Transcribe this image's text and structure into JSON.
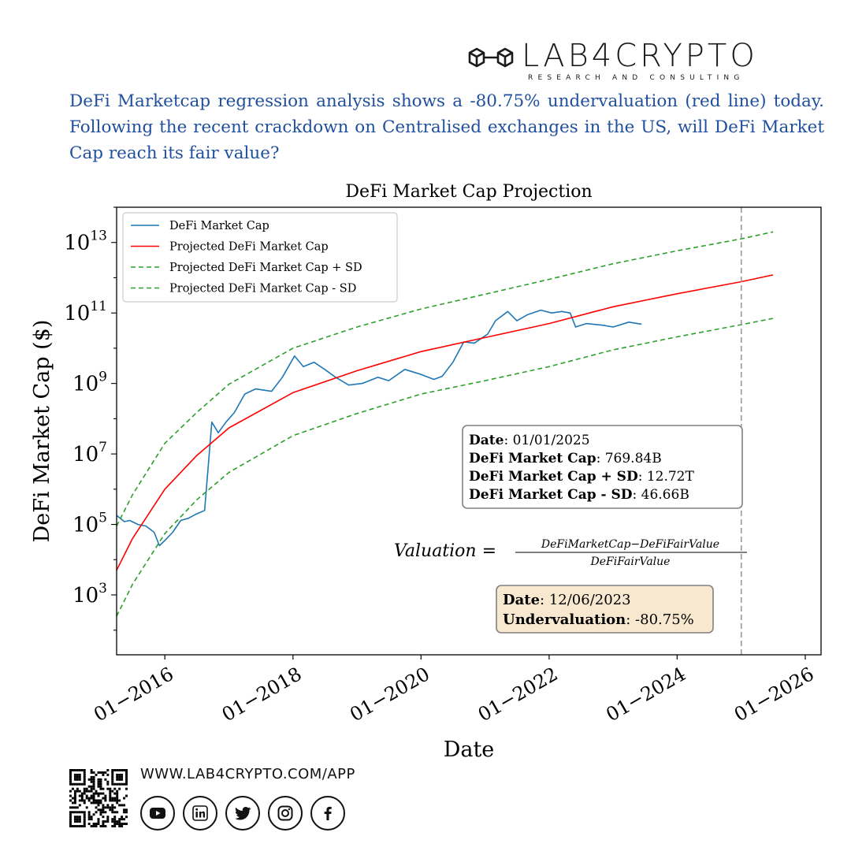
{
  "brand": {
    "name": "LAB4CRYPTO",
    "tagline": "RESEARCH AND CONSULTING",
    "url": "WWW.LAB4CRYPTO.COM/APP"
  },
  "headline": "DeFi Marketcap regression analysis shows a -80.75% undervaluation (red line) today. Following the recent crackdown on Centralised exchanges in the US, will DeFi Market Cap reach its fair value?",
  "social_icons": [
    "youtube-icon",
    "linkedin-icon",
    "twitter-icon",
    "instagram-icon",
    "facebook-icon"
  ],
  "chart_data": {
    "type": "line",
    "title": "DeFi Market Cap Projection",
    "xlabel": "Date",
    "ylabel": "DeFi Market Cap ($)",
    "y_scale": "log",
    "ylim": [
      20,
      100000000000000
    ],
    "xlim": [
      "2015-04-01",
      "2026-04-01"
    ],
    "x_ticks": [
      {
        "date": "2016-01-01",
        "label": "01−2016"
      },
      {
        "date": "2018-01-01",
        "label": "01−2018"
      },
      {
        "date": "2020-01-01",
        "label": "01−2020"
      },
      {
        "date": "2022-01-01",
        "label": "01−2022"
      },
      {
        "date": "2024-01-01",
        "label": "01−2024"
      },
      {
        "date": "2026-01-01",
        "label": "01−2026"
      }
    ],
    "y_ticks": [
      {
        "value": 1000,
        "base": "10",
        "exp": "3"
      },
      {
        "value": 100000,
        "base": "10",
        "exp": "5"
      },
      {
        "value": 10000000,
        "base": "10",
        "exp": "7"
      },
      {
        "value": 1000000000,
        "base": "10",
        "exp": "9"
      },
      {
        "value": 100000000000,
        "base": "10",
        "exp": "11"
      },
      {
        "value": 10000000000000,
        "base": "10",
        "exp": "13"
      }
    ],
    "legend_position": "top-left",
    "grid": false,
    "series": [
      {
        "name": "DeFi Market Cap",
        "color": "#1f77b4",
        "style": "solid",
        "points": [
          [
            "2015-04-01",
            180000
          ],
          [
            "2015-05-15",
            120000
          ],
          [
            "2015-06-15",
            130000
          ],
          [
            "2015-08-01",
            100000
          ],
          [
            "2015-09-15",
            90000
          ],
          [
            "2015-11-01",
            60000
          ],
          [
            "2015-12-01",
            25000
          ],
          [
            "2016-01-01",
            35000
          ],
          [
            "2016-02-15",
            60000
          ],
          [
            "2016-04-01",
            130000
          ],
          [
            "2016-05-15",
            150000
          ],
          [
            "2016-07-01",
            200000
          ],
          [
            "2016-08-15",
            250000
          ],
          [
            "2016-09-25",
            80000000
          ],
          [
            "2016-11-01",
            40000000
          ],
          [
            "2016-12-15",
            80000000
          ],
          [
            "2017-02-01",
            150000000
          ],
          [
            "2017-04-01",
            500000000
          ],
          [
            "2017-06-01",
            700000000
          ],
          [
            "2017-09-01",
            600000000
          ],
          [
            "2017-11-01",
            1500000000
          ],
          [
            "2018-01-10",
            6000000000
          ],
          [
            "2018-03-01",
            3000000000
          ],
          [
            "2018-05-01",
            4000000000
          ],
          [
            "2018-07-01",
            2500000000
          ],
          [
            "2018-09-01",
            1500000000
          ],
          [
            "2018-11-15",
            900000000
          ],
          [
            "2019-02-01",
            1000000000
          ],
          [
            "2019-05-01",
            1500000000
          ],
          [
            "2019-07-01",
            1200000000
          ],
          [
            "2019-10-01",
            2500000000
          ],
          [
            "2020-01-01",
            1800000000
          ],
          [
            "2020-03-15",
            1300000000
          ],
          [
            "2020-05-01",
            1600000000
          ],
          [
            "2020-07-01",
            4000000000
          ],
          [
            "2020-09-01",
            15000000000
          ],
          [
            "2020-11-01",
            14000000000
          ],
          [
            "2021-01-15",
            25000000000
          ],
          [
            "2021-03-01",
            60000000000
          ],
          [
            "2021-05-10",
            110000000000
          ],
          [
            "2021-07-01",
            60000000000
          ],
          [
            "2021-09-01",
            90000000000
          ],
          [
            "2021-11-15",
            120000000000
          ],
          [
            "2022-01-15",
            100000000000
          ],
          [
            "2022-03-15",
            110000000000
          ],
          [
            "2022-05-01",
            100000000000
          ],
          [
            "2022-06-01",
            40000000000
          ],
          [
            "2022-08-01",
            50000000000
          ],
          [
            "2022-11-01",
            45000000000
          ],
          [
            "2023-01-01",
            40000000000
          ],
          [
            "2023-04-01",
            55000000000
          ],
          [
            "2023-06-12",
            48000000000
          ]
        ]
      },
      {
        "name": "Projected DeFi Market Cap",
        "color": "#ff0000",
        "style": "solid",
        "points": [
          [
            "2015-04-01",
            5000
          ],
          [
            "2015-07-01",
            40000
          ],
          [
            "2016-01-01",
            1000000
          ],
          [
            "2016-07-01",
            9000000
          ],
          [
            "2017-01-01",
            55000000
          ],
          [
            "2018-01-01",
            550000000
          ],
          [
            "2019-01-01",
            2300000000
          ],
          [
            "2020-01-01",
            8000000000
          ],
          [
            "2021-01-01",
            20000000000
          ],
          [
            "2022-01-01",
            50000000000
          ],
          [
            "2023-01-01",
            150000000000
          ],
          [
            "2024-01-01",
            350000000000
          ],
          [
            "2025-01-01",
            769840000000
          ],
          [
            "2025-07-01",
            1200000000000
          ]
        ]
      },
      {
        "name": "Projected DeFi Market Cap + SD",
        "color": "#2ca02c",
        "style": "dashed",
        "points": [
          [
            "2015-04-01",
            90000
          ],
          [
            "2015-07-01",
            700000
          ],
          [
            "2016-01-01",
            20000000
          ],
          [
            "2016-07-01",
            150000000
          ],
          [
            "2017-01-01",
            950000000
          ],
          [
            "2018-01-01",
            10000000000
          ],
          [
            "2019-01-01",
            40000000000
          ],
          [
            "2020-01-01",
            130000000000
          ],
          [
            "2021-01-01",
            340000000000
          ],
          [
            "2022-01-01",
            900000000000
          ],
          [
            "2023-01-01",
            2500000000000
          ],
          [
            "2024-01-01",
            5800000000000
          ],
          [
            "2025-01-01",
            12720000000000
          ],
          [
            "2025-07-01",
            20000000000000
          ]
        ]
      },
      {
        "name": "Projected DeFi Market Cap - SD",
        "color": "#2ca02c",
        "style": "dashed",
        "points": [
          [
            "2015-04-01",
            250
          ],
          [
            "2015-07-01",
            2000
          ],
          [
            "2016-01-01",
            55000
          ],
          [
            "2016-07-01",
            500000
          ],
          [
            "2017-01-01",
            3000000
          ],
          [
            "2018-01-01",
            33000000
          ],
          [
            "2019-01-01",
            140000000
          ],
          [
            "2020-01-01",
            500000000
          ],
          [
            "2021-01-01",
            1200000000
          ],
          [
            "2022-01-01",
            3000000000
          ],
          [
            "2023-01-01",
            9000000000
          ],
          [
            "2024-01-01",
            21000000000
          ],
          [
            "2025-01-01",
            46660000000
          ],
          [
            "2025-07-01",
            70000000000
          ]
        ]
      }
    ],
    "vline": {
      "date": "2025-01-01",
      "color": "#999999",
      "style": "dashed"
    },
    "annotations": {
      "projection_box": {
        "rows": [
          {
            "label": "Date",
            "value": ": 01/01/2025"
          },
          {
            "label": "DeFi Market Cap",
            "value": ": 769.84B"
          },
          {
            "label": "DeFi Market Cap + SD",
            "value": ": 12.72T"
          },
          {
            "label": "DeFi Market Cap - SD",
            "value": ": 46.66B"
          }
        ]
      },
      "formula": {
        "lhs": "Valuation =",
        "numerator": "DeFiMarketCap−DeFiFairValue",
        "denominator": "DeFiFairValue"
      },
      "today_box": {
        "rows": [
          {
            "label": "Date",
            "value": ":  12/06/2023"
          },
          {
            "label": "Undervaluation",
            "value": ": -80.75%"
          }
        ]
      }
    }
  }
}
